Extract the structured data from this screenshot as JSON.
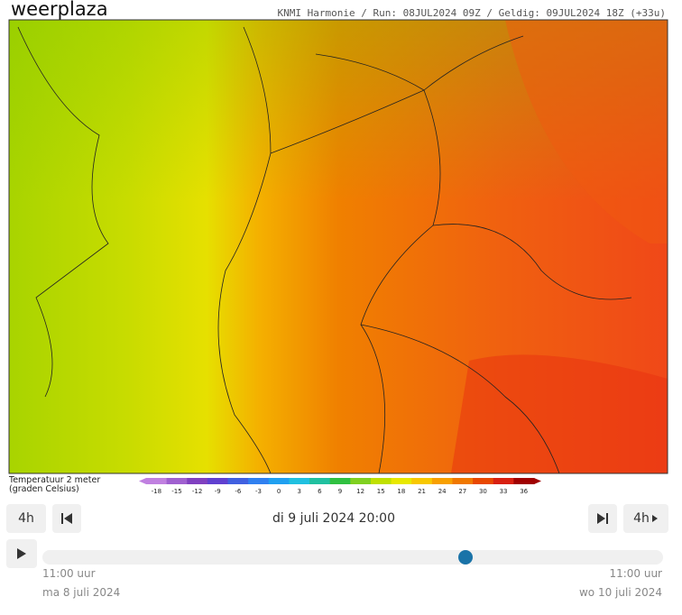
{
  "header": {
    "logo": "weerplaza",
    "run_info": "KNMI Harmonie / Run: 08JUL2024 09Z / Geldig: 09JUL2024 18Z (+33u)"
  },
  "legend": {
    "title": "Temperatuur 2 meter",
    "subtitle": "(graden Celsius)",
    "ticks": [
      -18,
      -15,
      -12,
      -9,
      -6,
      -3,
      0,
      3,
      6,
      9,
      12,
      15,
      18,
      21,
      24,
      27,
      30,
      33,
      36
    ],
    "colors": [
      "#c080e0",
      "#a060d0",
      "#8040c0",
      "#6040d0",
      "#4060e0",
      "#3080f0",
      "#20a0f0",
      "#20c0e0",
      "#20c0a0",
      "#30c040",
      "#80d020",
      "#c0e000",
      "#e8e800",
      "#f8c800",
      "#f8a000",
      "#f07800",
      "#e84800",
      "#d82010",
      "#a00000"
    ]
  },
  "controls": {
    "step_back": "4h",
    "step_forward": "4h",
    "current_time": "di 9 juli 2024 20:00",
    "start_time": "11:00 uur",
    "start_date": "ma 8 juli 2024",
    "end_time": "11:00 uur",
    "end_date": "wo 10 juli 2024"
  }
}
